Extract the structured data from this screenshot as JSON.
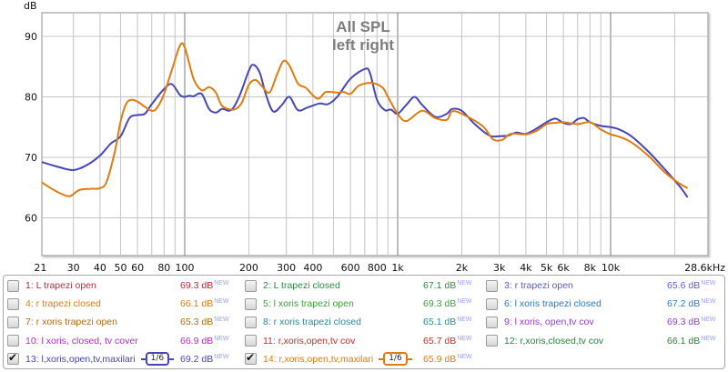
{
  "chart_data": {
    "type": "line",
    "title": "All SPL",
    "subtitle": "left right",
    "ylabel": "dB",
    "xlabel": "",
    "x_scale": "log",
    "xlim": [
      21,
      28600
    ],
    "ylim": [
      53.8,
      94
    ],
    "grid": true,
    "x_ticks": [
      {
        "value": 21,
        "label": "21"
      },
      {
        "value": 30,
        "label": "30"
      },
      {
        "value": 40,
        "label": "40"
      },
      {
        "value": 50,
        "label": "50"
      },
      {
        "value": 60,
        "label": "60"
      },
      {
        "value": 80,
        "label": "80"
      },
      {
        "value": 100,
        "label": "100"
      },
      {
        "value": 200,
        "label": "200"
      },
      {
        "value": 300,
        "label": "300"
      },
      {
        "value": 400,
        "label": "400"
      },
      {
        "value": 600,
        "label": "600"
      },
      {
        "value": 800,
        "label": "800"
      },
      {
        "value": 1000,
        "label": "1k"
      },
      {
        "value": 2000,
        "label": "2k"
      },
      {
        "value": 3000,
        "label": "3k"
      },
      {
        "value": 4000,
        "label": "4k"
      },
      {
        "value": 5000,
        "label": "5k"
      },
      {
        "value": 6000,
        "label": "6k"
      },
      {
        "value": 8000,
        "label": "8k"
      },
      {
        "value": 10000,
        "label": "10k"
      },
      {
        "value": 28600,
        "label": "28.6kHz"
      }
    ],
    "x_gridlines": [
      30,
      40,
      50,
      60,
      70,
      80,
      90,
      100,
      200,
      300,
      400,
      500,
      600,
      700,
      800,
      900,
      1000,
      2000,
      3000,
      4000,
      5000,
      6000,
      7000,
      8000,
      9000,
      10000,
      20000
    ],
    "x_major_lines": [
      100,
      1000,
      10000
    ],
    "y_ticks": [
      {
        "value": 90,
        "label": "90"
      },
      {
        "value": 80,
        "label": "80"
      },
      {
        "value": 70,
        "label": "70"
      },
      {
        "value": 60,
        "label": "60"
      }
    ],
    "series": [
      {
        "name": "13: l,xoris,open,tv,maxilari",
        "color": "#4646b8",
        "x": [
          21,
          25,
          30,
          35,
          40,
          45,
          50,
          55,
          60,
          65,
          70,
          80,
          87,
          95,
          100,
          105,
          110,
          120,
          130,
          140,
          150,
          165,
          180,
          200,
          210,
          225,
          240,
          260,
          285,
          310,
          340,
          380,
          430,
          470,
          520,
          600,
          700,
          740,
          800,
          870,
          930,
          1000,
          1100,
          1200,
          1300,
          1500,
          1700,
          1800,
          2000,
          2300,
          2700,
          3000,
          3300,
          3600,
          4000,
          4500,
          5000,
          5500,
          6000,
          6500,
          7000,
          7500,
          8000,
          9000,
          10000,
          11000,
          12500,
          15000,
          18000,
          21000,
          23000
        ],
        "y": [
          69.3,
          68.5,
          67.9,
          68.8,
          70.3,
          72.3,
          73.5,
          76.5,
          77,
          77.2,
          78.8,
          81.3,
          82.1,
          80.3,
          80,
          80.2,
          80.1,
          80.5,
          78,
          77.4,
          78,
          77.8,
          80,
          84.3,
          85.3,
          84,
          80.5,
          77.6,
          78.6,
          80,
          77.8,
          78.3,
          78.9,
          78.8,
          80,
          83,
          84.6,
          84,
          79.5,
          77.8,
          77.9,
          77.2,
          78.7,
          80,
          78.7,
          76.7,
          77.2,
          78,
          77.7,
          75.5,
          73.6,
          73.5,
          73.6,
          74.1,
          73.9,
          74.8,
          75.8,
          76.4,
          75.7,
          75.5,
          76.3,
          76.5,
          75.8,
          75.2,
          75,
          74.6,
          73.5,
          71,
          68,
          65.3,
          63.4
        ]
      },
      {
        "name": "14: r,xoris,open,tv,maxilari",
        "color": "#e07b10",
        "x": [
          21,
          24,
          27,
          29,
          32,
          36,
          40,
          43,
          47,
          50,
          53,
          56,
          60,
          70,
          75,
          80,
          88,
          95,
          100,
          110,
          120,
          130,
          140,
          150,
          170,
          185,
          200,
          215,
          230,
          250,
          270,
          290,
          310,
          340,
          370,
          420,
          460,
          520,
          560,
          600,
          660,
          760,
          850,
          900,
          1000,
          1100,
          1300,
          1500,
          1700,
          1800,
          2000,
          2500,
          2800,
          3100,
          3400,
          4000,
          4500,
          5000,
          5500,
          6000,
          7000,
          8000,
          9000,
          10000,
          11000,
          12500,
          15000,
          18000,
          21000,
          23000
        ],
        "y": [
          66,
          64.7,
          63.8,
          63.6,
          64.6,
          64.8,
          64.9,
          66,
          71,
          76,
          78.8,
          79.5,
          79.2,
          77.7,
          78.5,
          80.5,
          85,
          88.5,
          88.2,
          83,
          81.1,
          81.6,
          80.7,
          78.5,
          77.9,
          79,
          82,
          82.8,
          81.8,
          80.7,
          83.5,
          85.9,
          85.2,
          82.2,
          81.5,
          79.7,
          80.8,
          80.7,
          80.8,
          80.5,
          81.9,
          82.3,
          81.5,
          80,
          77.2,
          76,
          77.7,
          76.5,
          76.2,
          77.6,
          77.2,
          75.2,
          73,
          72.9,
          73.9,
          73.8,
          74.4,
          75.5,
          75.7,
          75.8,
          75.5,
          75.8,
          74.6,
          73.8,
          73.4,
          72.5,
          70.3,
          67.5,
          65.7,
          64.9
        ]
      }
    ]
  },
  "legend": {
    "new_label": "NEW",
    "items": [
      {
        "label": "1: L trapezi open",
        "value": "69.3 dB",
        "color": "#c0283a",
        "checked": false
      },
      {
        "label": "2: L trapezi closed",
        "value": "67.1 dB",
        "color": "#2a8a4a",
        "checked": false
      },
      {
        "label": "3: r trapezi open",
        "value": "65.6 dB",
        "color": "#5a5ad0",
        "checked": false
      },
      {
        "label": "4: r trapezi closed",
        "value": "66.1 dB",
        "color": "#e07b10",
        "checked": false
      },
      {
        "label": "5: l xoris trapezi open",
        "value": "69.3 dB",
        "color": "#3aa03a",
        "checked": false
      },
      {
        "label": "6: l xoris trapezi closed",
        "value": "67.2 dB",
        "color": "#2a7ac0",
        "checked": false
      },
      {
        "label": "7: r xoris trapezi open",
        "value": "65.3 dB",
        "color": "#b86a10",
        "checked": false
      },
      {
        "label": "8: r xoris trapezi closed",
        "value": "65.1 dB",
        "color": "#2a8a9a",
        "checked": false
      },
      {
        "label": "9: l xoris, open,tv cov",
        "value": "69.3 dB",
        "color": "#9a3ad0",
        "checked": false
      },
      {
        "label": "10: l xoris, closed, tv cover",
        "value": "66.9 dB",
        "color": "#b030c0",
        "checked": false
      },
      {
        "label": "11: r,xoris,open,tv cov",
        "value": "65.7 dB",
        "color": "#d02828",
        "checked": false
      },
      {
        "label": "12: r,xoris,closed,tv cov",
        "value": "66.1 dB",
        "color": "#2a8040",
        "checked": false
      },
      {
        "label": "13: l,xoris,open,tv,maxilari",
        "value": "69.2 dB",
        "color": "#4646b8",
        "checked": true,
        "smoothing": "1/6"
      },
      {
        "label": "14: r,xoris,open,tv,maxilari",
        "value": "65.9 dB",
        "color": "#e07b10",
        "checked": true,
        "smoothing": "1/6"
      }
    ]
  }
}
